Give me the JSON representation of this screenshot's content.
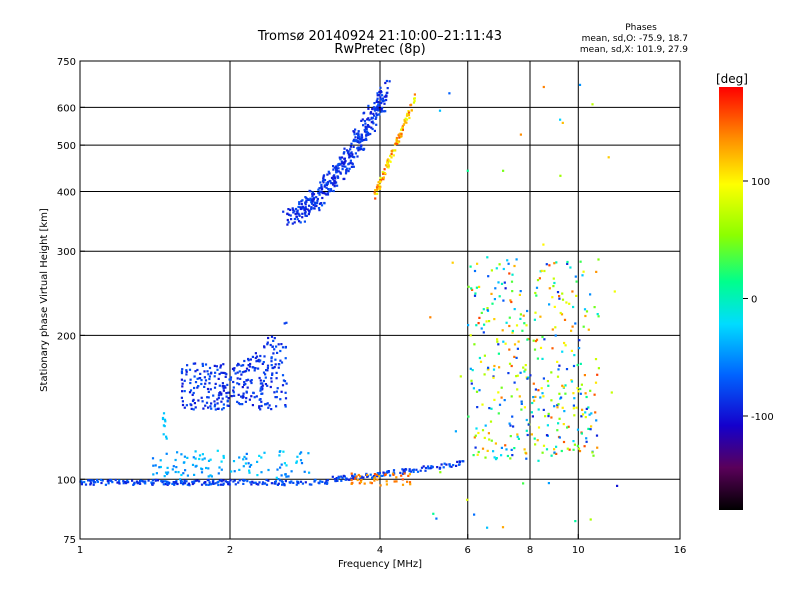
{
  "chart_data": {
    "type": "scatter",
    "title": "Tromsø 20140924 21:10:00–21:11:43",
    "subtitle": "RwPretec (8p)",
    "xlabel": "Frequency [MHz]",
    "ylabel": "Stationary phase Virtual Height [km]",
    "x_scale": "log2",
    "y_scale": "log",
    "xlim": [
      1,
      16
    ],
    "ylim": [
      75,
      750
    ],
    "x_ticks": [
      1,
      2,
      4,
      6,
      8,
      10,
      16
    ],
    "x_tick_labels": [
      "1",
      "2",
      "4",
      "6",
      "8",
      "10",
      "16"
    ],
    "y_ticks": [
      75,
      100,
      200,
      300,
      400,
      500,
      600,
      750
    ],
    "y_tick_labels": [
      "75",
      "100",
      "200",
      "300",
      "400",
      "500",
      "600",
      "750"
    ],
    "grid": true,
    "phases_box": {
      "title": "Phases",
      "line1": "mean, sd,O: -75.9, 18.7",
      "line2": "mean, sd,X: 101.9, 27.9"
    },
    "colorbar": {
      "label": "[deg]",
      "range": [
        -180,
        180
      ],
      "ticks": [
        100,
        0,
        -100
      ],
      "tick_labels": [
        "100",
        "0",
        "-100"
      ]
    },
    "point_clusters": [
      {
        "region": "E-layer trace",
        "x_range": [
          1.0,
          6.0
        ],
        "y_range": [
          97,
          110
        ],
        "phase_deg": [
          -100,
          -60
        ]
      },
      {
        "region": "Es blanket",
        "x_range": [
          1.4,
          2.9
        ],
        "y_range": [
          100,
          115
        ],
        "phase_deg": [
          -60,
          -20
        ]
      },
      {
        "region": "E-layer orange",
        "x_range": [
          3.5,
          4.6
        ],
        "y_range": [
          97,
          103
        ],
        "phase_deg": [
          120,
          160
        ]
      },
      {
        "region": "F1 patch",
        "x_range": [
          1.6,
          2.6
        ],
        "y_range": [
          140,
          215
        ],
        "phase_deg": [
          -100,
          -70
        ]
      },
      {
        "region": "F2 O-trace",
        "x_range": [
          2.6,
          4.1
        ],
        "y_range": [
          355,
          650
        ],
        "phase_deg": [
          -100,
          -70
        ]
      },
      {
        "region": "F2 X-trace",
        "x_range": [
          3.9,
          4.7
        ],
        "y_range": [
          380,
          640
        ],
        "phase_deg": [
          80,
          160
        ]
      },
      {
        "region": "Spread F",
        "x_range": [
          6.0,
          11.0
        ],
        "y_range": [
          110,
          290
        ],
        "phase_deg": [
          -100,
          160
        ]
      }
    ]
  }
}
